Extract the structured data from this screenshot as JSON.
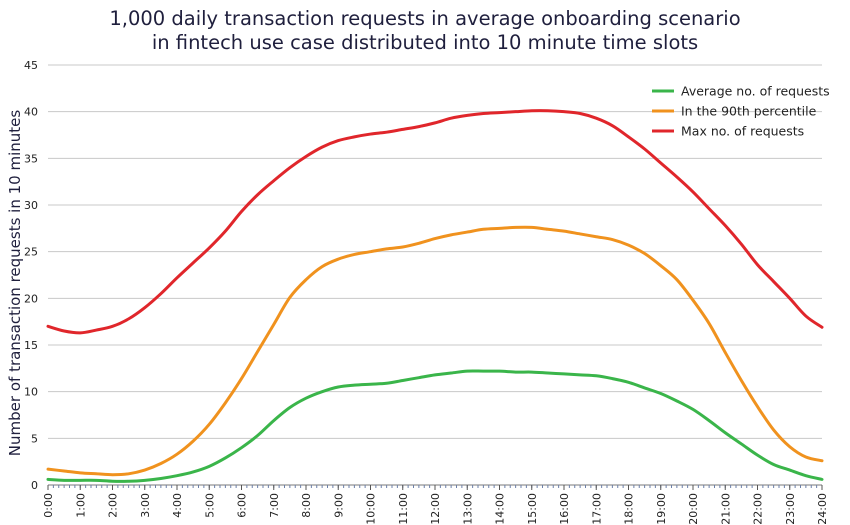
{
  "chart_data": {
    "type": "line",
    "title": [
      "1,000 daily transaction requests in average onboarding scenario",
      "in fintech use case distributed into 10 minute time slots"
    ],
    "xlabel": "",
    "ylabel": "Number of transaction requests in 10 minutes",
    "x_ticks": [
      "0:00",
      "1:00",
      "2:00",
      "3:00",
      "4:00",
      "5:00",
      "6:00",
      "7:00",
      "8:00",
      "9:00",
      "10:00",
      "11:00",
      "12:00",
      "13:00",
      "14:00",
      "15:00",
      "16:00",
      "17:00",
      "18:00",
      "19:00",
      "20:00",
      "21:00",
      "22:00",
      "23:00",
      "24:00"
    ],
    "y_ticks": [
      0,
      5,
      10,
      15,
      20,
      25,
      30,
      35,
      40,
      45
    ],
    "ylim": [
      0,
      45
    ],
    "xlim_hours": [
      0,
      24
    ],
    "grid": "horizontal",
    "legend_position": "top-right",
    "x_hours": [
      0,
      0.5,
      1,
      1.5,
      2,
      2.5,
      3,
      3.5,
      4,
      4.5,
      5,
      5.5,
      6,
      6.5,
      7,
      7.5,
      8,
      8.5,
      9,
      9.5,
      10,
      10.5,
      11,
      11.5,
      12,
      12.5,
      13,
      13.5,
      14,
      14.5,
      15,
      15.5,
      16,
      16.5,
      17,
      17.5,
      18,
      18.5,
      19,
      19.5,
      20,
      20.5,
      21,
      21.5,
      22,
      22.5,
      23,
      23.5,
      24
    ],
    "series": [
      {
        "name": "Average no. of requests",
        "color": "#3ab54a",
        "values": [
          0.6,
          0.5,
          0.5,
          0.5,
          0.4,
          0.4,
          0.5,
          0.7,
          1.0,
          1.4,
          2.0,
          2.9,
          4.0,
          5.3,
          6.9,
          8.3,
          9.3,
          10.0,
          10.5,
          10.7,
          10.8,
          10.9,
          11.2,
          11.5,
          11.8,
          12.0,
          12.2,
          12.2,
          12.2,
          12.1,
          12.1,
          12.0,
          11.9,
          11.8,
          11.7,
          11.4,
          11.0,
          10.4,
          9.8,
          9.0,
          8.1,
          6.9,
          5.6,
          4.4,
          3.2,
          2.2,
          1.6,
          1.0,
          0.6
        ]
      },
      {
        "name": "In the 90th percentile",
        "color": "#f0921e",
        "values": [
          1.7,
          1.5,
          1.3,
          1.2,
          1.1,
          1.2,
          1.6,
          2.3,
          3.3,
          4.7,
          6.5,
          8.8,
          11.4,
          14.3,
          17.2,
          20.1,
          22.0,
          23.4,
          24.2,
          24.7,
          25.0,
          25.3,
          25.5,
          25.9,
          26.4,
          26.8,
          27.1,
          27.4,
          27.5,
          27.6,
          27.6,
          27.4,
          27.2,
          26.9,
          26.6,
          26.3,
          25.7,
          24.8,
          23.5,
          22.0,
          19.8,
          17.3,
          14.2,
          11.2,
          8.4,
          5.9,
          4.1,
          3.0,
          2.6
        ]
      },
      {
        "name": "Max no. of requests",
        "color": "#e0262b",
        "values": [
          17.0,
          16.5,
          16.3,
          16.6,
          17.0,
          17.8,
          19.0,
          20.5,
          22.2,
          23.8,
          25.4,
          27.2,
          29.3,
          31.1,
          32.6,
          34.0,
          35.2,
          36.2,
          36.9,
          37.3,
          37.6,
          37.8,
          38.1,
          38.4,
          38.8,
          39.3,
          39.6,
          39.8,
          39.9,
          40.0,
          40.1,
          40.1,
          40.0,
          39.8,
          39.3,
          38.5,
          37.3,
          36.0,
          34.5,
          33.0,
          31.4,
          29.6,
          27.8,
          25.8,
          23.6,
          21.8,
          20.0,
          18.1,
          16.9
        ]
      }
    ]
  }
}
